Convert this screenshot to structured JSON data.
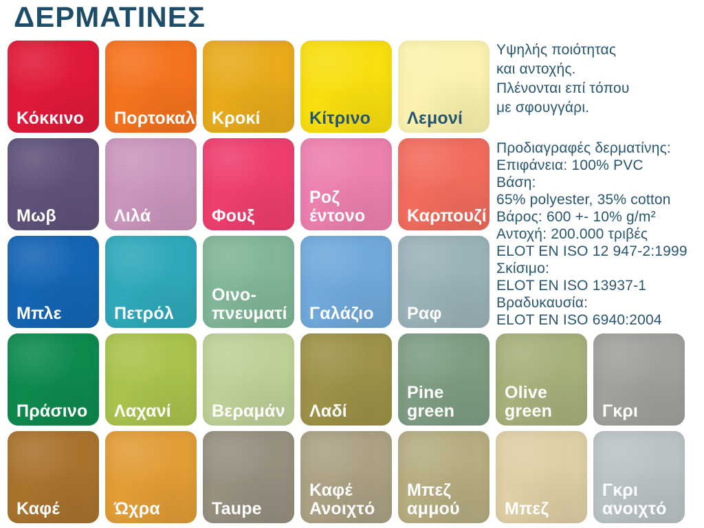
{
  "page": {
    "title": "ΔΕΡΜΑΤΙΝΕΣ",
    "title_color": "#1d4d68",
    "text_color": "#28566f",
    "background": "#ffffff"
  },
  "intro": {
    "lines": [
      "Υψηλής ποιότητας",
      "και αντοχής.",
      "Πλένονται επί τόπου",
      "με σφουγγάρι."
    ]
  },
  "specs": {
    "lines": [
      "Προδιαγραφές δερματίνης:",
      "Επιφάνεια: 100% PVC",
      "Βάση:",
      "65% polyester, 35% cotton",
      "Βάρος: 600 +- 10% g/m²",
      "Αντοχή: 200.000 τριβές",
      "ELOT EN ISO 12 947-2:1999",
      "Σκίσιμο:",
      "ELOT EN ISO 13937-1",
      "Βραδυκαυσία:",
      "ELOT EN ISO 6940:2004"
    ]
  },
  "swatches": [
    {
      "id": "kokkino",
      "label": "Κόκκινο",
      "color": "#e01a3a",
      "row": 1,
      "col": 1,
      "label_style": "light"
    },
    {
      "id": "portokali",
      "label": "Πορτοκαλί",
      "color": "#f4731f",
      "row": 1,
      "col": 2,
      "label_style": "light"
    },
    {
      "id": "kroki",
      "label": "Κροκί",
      "color": "#e8ab1c",
      "row": 1,
      "col": 3,
      "label_style": "light"
    },
    {
      "id": "kitrino",
      "label": "Κίτρινο",
      "color": "#f8df10",
      "row": 1,
      "col": 4,
      "label_style": "dark"
    },
    {
      "id": "lemoni",
      "label": "Λεμονί",
      "color": "#faf2ae",
      "row": 1,
      "col": 5,
      "label_style": "dark"
    },
    {
      "id": "mov",
      "label": "Μωβ",
      "color": "#60527a",
      "row": 2,
      "col": 1,
      "label_style": "light"
    },
    {
      "id": "lila",
      "label": "Λιλά",
      "color": "#cb96bc",
      "row": 2,
      "col": 2,
      "label_style": "light"
    },
    {
      "id": "foux",
      "label": "Φουξ",
      "color": "#ee3f6e",
      "row": 2,
      "col": 3,
      "label_style": "light"
    },
    {
      "id": "roz-entono",
      "label": "Ροζ\nέντονο",
      "color": "#ec80af",
      "row": 2,
      "col": 4,
      "label_style": "light"
    },
    {
      "id": "karpouzi",
      "label": "Καρπουζί",
      "color": "#f16c5e",
      "row": 2,
      "col": 5,
      "label_style": "light"
    },
    {
      "id": "ble",
      "label": "Μπλε",
      "color": "#1565b4",
      "row": 3,
      "col": 1,
      "label_style": "light"
    },
    {
      "id": "petrol",
      "label": "Πετρόλ",
      "color": "#2fa9ba",
      "row": 3,
      "col": 2,
      "label_style": "light"
    },
    {
      "id": "oinopnevmati",
      "label": "Οινο-\nπνευματί",
      "color": "#81b697",
      "row": 3,
      "col": 3,
      "label_style": "light"
    },
    {
      "id": "galazio",
      "label": "Γαλάζιο",
      "color": "#71a9db",
      "row": 3,
      "col": 4,
      "label_style": "light"
    },
    {
      "id": "raf",
      "label": "Ραφ",
      "color": "#9bb2b9",
      "row": 3,
      "col": 5,
      "label_style": "light"
    },
    {
      "id": "prasino",
      "label": "Πράσινο",
      "color": "#0e8a4d",
      "row": 4,
      "col": 1,
      "label_style": "light"
    },
    {
      "id": "laxani",
      "label": "Λαχανί",
      "color": "#a9c34d",
      "row": 4,
      "col": 2,
      "label_style": "light"
    },
    {
      "id": "veraman",
      "label": "Βεραμάν",
      "color": "#bdd197",
      "row": 4,
      "col": 3,
      "label_style": "light"
    },
    {
      "id": "ladi",
      "label": "Λαδί",
      "color": "#9d9248",
      "row": 4,
      "col": 4,
      "label_style": "light"
    },
    {
      "id": "pine-green",
      "label": "Pine\ngreen",
      "color": "#7f9d83",
      "row": 4,
      "col": 5,
      "label_style": "light"
    },
    {
      "id": "olive-green",
      "label": "Olive\ngreen",
      "color": "#a6b17b",
      "row": 4,
      "col": 6,
      "label_style": "light"
    },
    {
      "id": "gkri",
      "label": "Γκρι",
      "color": "#9fa29b",
      "row": 4,
      "col": 7,
      "label_style": "light"
    },
    {
      "id": "kafe",
      "label": "Καφέ",
      "color": "#a9732e",
      "row": 5,
      "col": 1,
      "label_style": "light"
    },
    {
      "id": "oxra",
      "label": "Ώχρα",
      "color": "#e29d36",
      "row": 5,
      "col": 2,
      "label_style": "light"
    },
    {
      "id": "taupe",
      "label": "Taupe",
      "color": "#97907f",
      "row": 5,
      "col": 3,
      "label_style": "light"
    },
    {
      "id": "kafe-anoixto",
      "label": "Καφέ\nΑνοιχτό",
      "color": "#aca184",
      "row": 5,
      "col": 4,
      "label_style": "light"
    },
    {
      "id": "bez-ammou",
      "label": "Μπεζ\nαμμού",
      "color": "#b6ad80",
      "row": 5,
      "col": 5,
      "label_style": "light"
    },
    {
      "id": "bez",
      "label": "Μπεζ",
      "color": "#dfcfa5",
      "row": 5,
      "col": 6,
      "label_style": "light"
    },
    {
      "id": "gkri-anoixto",
      "label": "Γκρι\nανοιχτό",
      "color": "#b9c3c6",
      "row": 5,
      "col": 7,
      "label_style": "light"
    }
  ]
}
